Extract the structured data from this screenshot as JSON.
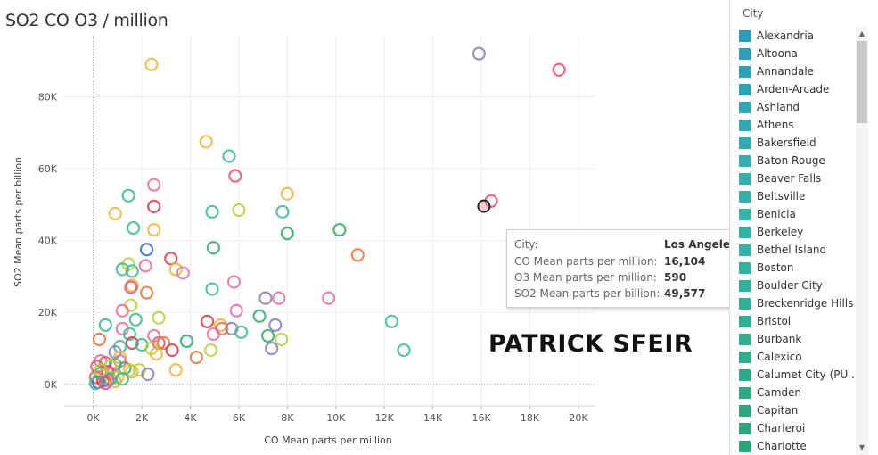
{
  "page_title": "SO2 CO O3 / million",
  "watermark": "PATRICK SFEIR",
  "chart_data": {
    "type": "scatter",
    "title": "SO2 CO O3 / million",
    "xlabel": "CO Mean parts per million",
    "ylabel": "SO2 Mean parts per billion",
    "xlim": [
      -1200,
      20700
    ],
    "ylim": [
      -6000,
      97000
    ],
    "x_ticks": [
      0,
      2000,
      4000,
      6000,
      8000,
      10000,
      12000,
      14000,
      16000,
      18000,
      20000
    ],
    "x_tick_labels": [
      "0K",
      "2K",
      "4K",
      "6K",
      "8K",
      "10K",
      "12K",
      "14K",
      "16K",
      "18K",
      "20K"
    ],
    "y_ticks": [
      0,
      20000,
      40000,
      60000,
      80000
    ],
    "y_tick_labels": [
      "0K",
      "20K",
      "40K",
      "60K",
      "80K"
    ],
    "grid": true,
    "marker": "hollow-circle",
    "highlighted_point": {
      "x": 16104,
      "y": 49577
    },
    "points": [
      {
        "x": 15900,
        "y": 92000,
        "color": "#8e7bb8"
      },
      {
        "x": 19200,
        "y": 87500,
        "color": "#e8536f"
      },
      {
        "x": 2400,
        "y": 89000,
        "color": "#f0b43c"
      },
      {
        "x": 4650,
        "y": 67500,
        "color": "#f0b43c"
      },
      {
        "x": 5600,
        "y": 63500,
        "color": "#3dba8c"
      },
      {
        "x": 5850,
        "y": 58000,
        "color": "#e8536f"
      },
      {
        "x": 2500,
        "y": 55500,
        "color": "#e86ea0"
      },
      {
        "x": 8000,
        "y": 53000,
        "color": "#f0b43c"
      },
      {
        "x": 1450,
        "y": 52500,
        "color": "#3dba8c"
      },
      {
        "x": 16400,
        "y": 51000,
        "color": "#e8536f"
      },
      {
        "x": 2500,
        "y": 49500,
        "color": "#d93a4a"
      },
      {
        "x": 4900,
        "y": 48000,
        "color": "#3dba8c"
      },
      {
        "x": 6000,
        "y": 48500,
        "color": "#b9cf3a"
      },
      {
        "x": 7800,
        "y": 48000,
        "color": "#3dba8c"
      },
      {
        "x": 900,
        "y": 47500,
        "color": "#f0b43c"
      },
      {
        "x": 1650,
        "y": 43500,
        "color": "#3dba8c"
      },
      {
        "x": 2500,
        "y": 43000,
        "color": "#f0b43c"
      },
      {
        "x": 10150,
        "y": 43000,
        "color": "#2faa6c"
      },
      {
        "x": 8000,
        "y": 42000,
        "color": "#2faa6c"
      },
      {
        "x": 4950,
        "y": 38000,
        "color": "#2faa6c"
      },
      {
        "x": 2200,
        "y": 37500,
        "color": "#3470c8"
      },
      {
        "x": 10900,
        "y": 36000,
        "color": "#e8743b"
      },
      {
        "x": 3200,
        "y": 35000,
        "color": "#d93a4a"
      },
      {
        "x": 1450,
        "y": 33500,
        "color": "#b9cf3a"
      },
      {
        "x": 2150,
        "y": 33000,
        "color": "#e86ea0"
      },
      {
        "x": 1200,
        "y": 32000,
        "color": "#3dba8c"
      },
      {
        "x": 1600,
        "y": 31500,
        "color": "#3dba8c"
      },
      {
        "x": 3400,
        "y": 32000,
        "color": "#f0b43c"
      },
      {
        "x": 3700,
        "y": 31000,
        "color": "#d97ab0"
      },
      {
        "x": 1600,
        "y": 27500,
        "color": "#f0b43c"
      },
      {
        "x": 1550,
        "y": 27000,
        "color": "#e8536f"
      },
      {
        "x": 4900,
        "y": 26500,
        "color": "#3dba8c"
      },
      {
        "x": 5800,
        "y": 28500,
        "color": "#e86ea0"
      },
      {
        "x": 2200,
        "y": 25500,
        "color": "#e8743b"
      },
      {
        "x": 7100,
        "y": 24000,
        "color": "#8e7bb8"
      },
      {
        "x": 7650,
        "y": 24000,
        "color": "#e86ea0"
      },
      {
        "x": 9700,
        "y": 24000,
        "color": "#e86ea0"
      },
      {
        "x": 1550,
        "y": 22000,
        "color": "#b9cf3a"
      },
      {
        "x": 1200,
        "y": 20500,
        "color": "#e86ea0"
      },
      {
        "x": 5900,
        "y": 20500,
        "color": "#e86ea0"
      },
      {
        "x": 6850,
        "y": 19000,
        "color": "#2faa6c"
      },
      {
        "x": 1750,
        "y": 18000,
        "color": "#3dba8c"
      },
      {
        "x": 2700,
        "y": 18500,
        "color": "#b9cf3a"
      },
      {
        "x": 4700,
        "y": 17500,
        "color": "#d93a4a"
      },
      {
        "x": 12300,
        "y": 17500,
        "color": "#3dba8c"
      },
      {
        "x": 500,
        "y": 16500,
        "color": "#3dba8c"
      },
      {
        "x": 7500,
        "y": 16500,
        "color": "#8e7bb8"
      },
      {
        "x": 5250,
        "y": 16500,
        "color": "#f0b43c"
      },
      {
        "x": 5300,
        "y": 15500,
        "color": "#e8743b"
      },
      {
        "x": 5700,
        "y": 15500,
        "color": "#8e7bb8"
      },
      {
        "x": 1200,
        "y": 15500,
        "color": "#e86ea0"
      },
      {
        "x": 6100,
        "y": 14500,
        "color": "#3dba8c"
      },
      {
        "x": 4950,
        "y": 14000,
        "color": "#e86ea0"
      },
      {
        "x": 7200,
        "y": 13500,
        "color": "#2faa6c"
      },
      {
        "x": 1500,
        "y": 14000,
        "color": "#3dba8c"
      },
      {
        "x": 2500,
        "y": 13500,
        "color": "#e86ea0"
      },
      {
        "x": 250,
        "y": 12500,
        "color": "#e8743b"
      },
      {
        "x": 7750,
        "y": 12500,
        "color": "#b9cf3a"
      },
      {
        "x": 3850,
        "y": 12000,
        "color": "#2faa6c"
      },
      {
        "x": 2700,
        "y": 11500,
        "color": "#e8536f"
      },
      {
        "x": 2900,
        "y": 11500,
        "color": "#e8743b"
      },
      {
        "x": 1600,
        "y": 11500,
        "color": "#d93a4a"
      },
      {
        "x": 2000,
        "y": 11000,
        "color": "#3dba8c"
      },
      {
        "x": 1100,
        "y": 10500,
        "color": "#3dba8c"
      },
      {
        "x": 2400,
        "y": 10000,
        "color": "#b9cf3a"
      },
      {
        "x": 3250,
        "y": 9500,
        "color": "#d93a4a"
      },
      {
        "x": 12800,
        "y": 9500,
        "color": "#3dba8c"
      },
      {
        "x": 4850,
        "y": 9500,
        "color": "#b9cf3a"
      },
      {
        "x": 900,
        "y": 9000,
        "color": "#8e7bb8"
      },
      {
        "x": 7350,
        "y": 10000,
        "color": "#8e7bb8"
      },
      {
        "x": 2600,
        "y": 8500,
        "color": "#f0b43c"
      },
      {
        "x": 4250,
        "y": 7500,
        "color": "#e8743b"
      },
      {
        "x": 1100,
        "y": 7500,
        "color": "#f0b43c"
      },
      {
        "x": 1100,
        "y": 6500,
        "color": "#d97ab0"
      },
      {
        "x": 300,
        "y": 6500,
        "color": "#e86ea0"
      },
      {
        "x": 500,
        "y": 6000,
        "color": "#e8536f"
      },
      {
        "x": 900,
        "y": 5500,
        "color": "#3dba8c"
      },
      {
        "x": 700,
        "y": 5000,
        "color": "#b9cf3a"
      },
      {
        "x": 150,
        "y": 5000,
        "color": "#e8536f"
      },
      {
        "x": 1300,
        "y": 4500,
        "color": "#2faa6c"
      },
      {
        "x": 1500,
        "y": 4000,
        "color": "#f0b43c"
      },
      {
        "x": 3400,
        "y": 4000,
        "color": "#f0b43c"
      },
      {
        "x": 1900,
        "y": 4000,
        "color": "#b9cf3a"
      },
      {
        "x": 1600,
        "y": 3500,
        "color": "#b9cf3a"
      },
      {
        "x": 600,
        "y": 3500,
        "color": "#d93a4a"
      },
      {
        "x": 300,
        "y": 3000,
        "color": "#3dba8c"
      },
      {
        "x": 800,
        "y": 3000,
        "color": "#e86ea0"
      },
      {
        "x": 2250,
        "y": 2800,
        "color": "#8e7bb8"
      },
      {
        "x": 400,
        "y": 2500,
        "color": "#f0b43c"
      },
      {
        "x": 100,
        "y": 2000,
        "color": "#e8536f"
      },
      {
        "x": 1000,
        "y": 2000,
        "color": "#b9cf3a"
      },
      {
        "x": 700,
        "y": 1500,
        "color": "#3dba8c"
      },
      {
        "x": 400,
        "y": 1000,
        "color": "#d93a4a"
      },
      {
        "x": 900,
        "y": 800,
        "color": "#f0b43c"
      },
      {
        "x": 200,
        "y": 600,
        "color": "#3470c8"
      },
      {
        "x": 100,
        "y": 300,
        "color": "#3dba8c"
      },
      {
        "x": 500,
        "y": 300,
        "color": "#e8536f"
      },
      {
        "x": 600,
        "y": 1200,
        "color": "#8e7bb8"
      },
      {
        "x": 1200,
        "y": 1500,
        "color": "#3dba8c"
      },
      {
        "x": 300,
        "y": 4000,
        "color": "#b9cf3a"
      }
    ]
  },
  "legend": {
    "title": "City",
    "items": [
      {
        "label": "Alexandria",
        "color": "#2a9bb8"
      },
      {
        "label": "Altoona",
        "color": "#2b9fb8"
      },
      {
        "label": "Annandale",
        "color": "#2ba2b8"
      },
      {
        "label": "Arden-Arcade",
        "color": "#2ca5b7"
      },
      {
        "label": "Ashland",
        "color": "#2da8b6"
      },
      {
        "label": "Athens",
        "color": "#2eaab5"
      },
      {
        "label": "Bakersfield",
        "color": "#30acb4"
      },
      {
        "label": "Baton Rouge",
        "color": "#31afb2"
      },
      {
        "label": "Beaver Falls",
        "color": "#32b1b0"
      },
      {
        "label": "Beltsville",
        "color": "#32b2ad"
      },
      {
        "label": "Benicia",
        "color": "#33b3aa"
      },
      {
        "label": "Berkeley",
        "color": "#33b3a7"
      },
      {
        "label": "Bethel Island",
        "color": "#33b3a3"
      },
      {
        "label": "Boston",
        "color": "#32b3a0"
      },
      {
        "label": "Boulder City",
        "color": "#32b29c"
      },
      {
        "label": "Breckenridge Hills",
        "color": "#31b198"
      },
      {
        "label": "Bristol",
        "color": "#30b094"
      },
      {
        "label": "Burbank",
        "color": "#2fae90"
      },
      {
        "label": "Calexico",
        "color": "#2ead8c"
      },
      {
        "label": "Calumet City (PU ..",
        "color": "#2dab88"
      },
      {
        "label": "Camden",
        "color": "#2caa84"
      },
      {
        "label": "Capitan",
        "color": "#2ba880"
      },
      {
        "label": "Charleroi",
        "color": "#2aa77c"
      },
      {
        "label": "Charlotte",
        "color": "#29a678"
      }
    ]
  },
  "tooltip": {
    "rows": [
      {
        "label": "City:",
        "value": "Los Angeles"
      },
      {
        "label": "CO Mean parts per million:",
        "value": "16,104"
      },
      {
        "label": "O3 Mean parts per million:",
        "value": "590"
      },
      {
        "label": "SO2 Mean parts per billion:",
        "value": "49,577"
      }
    ]
  },
  "scroll_icons": {
    "up": "scroll-up-arrow-icon",
    "down": "scroll-down-arrow-icon"
  }
}
